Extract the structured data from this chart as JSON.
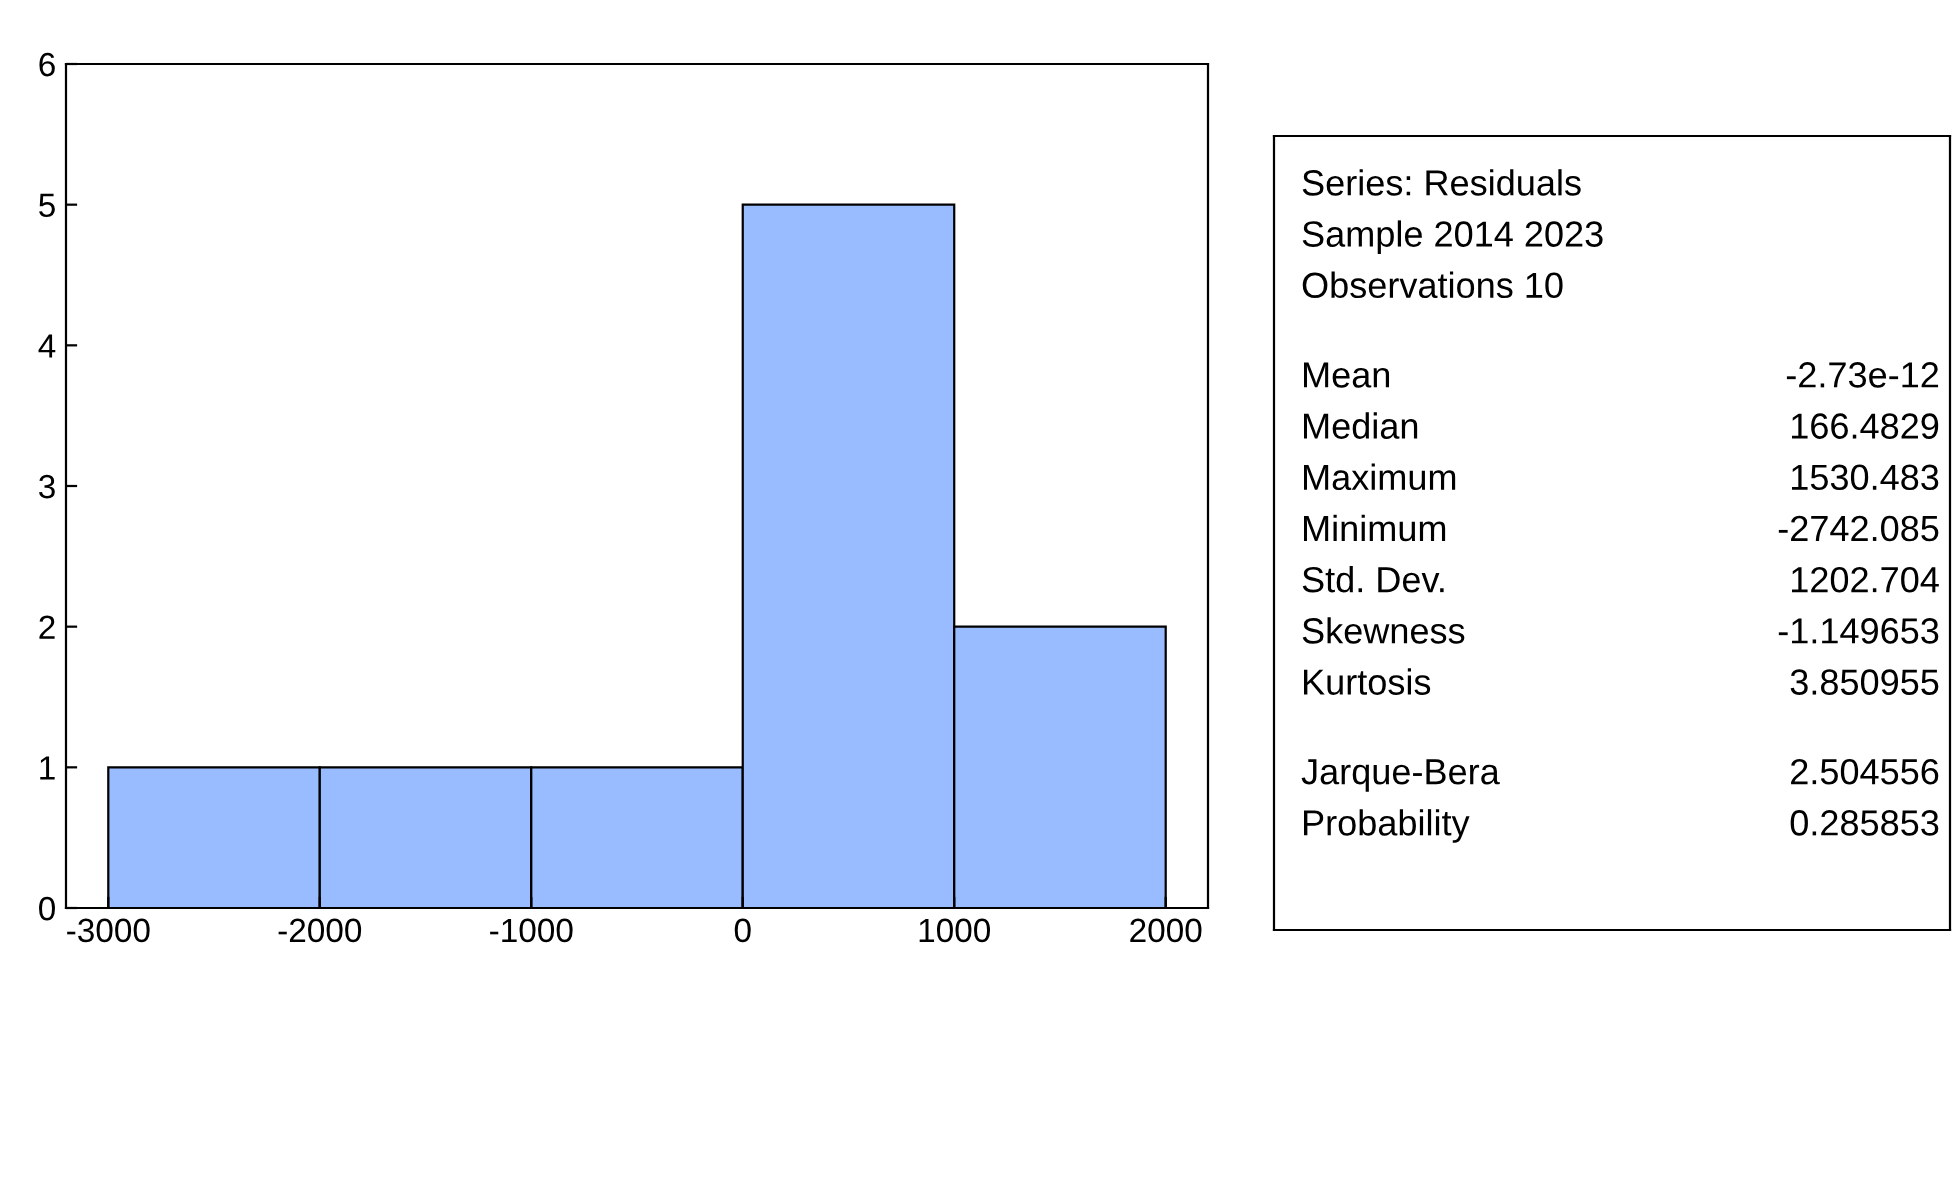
{
  "chart_data": [
    {
      "type": "histogram",
      "bins": [
        -3000,
        -2000,
        -1000,
        0,
        1000,
        2000
      ],
      "values": [
        1,
        1,
        1,
        5,
        2
      ],
      "color": "#99bbff",
      "xlim": [
        -3200,
        2200
      ],
      "xticks": [
        -3000,
        -2000,
        -1000,
        0,
        1000,
        2000
      ],
      "ylim": [
        0,
        6
      ],
      "yticks": [
        0,
        1,
        2,
        3,
        4,
        5,
        6
      ],
      "grid": false
    },
    {
      "type": "other",
      "annotations": [
        "Series: Residuals",
        "Sample 2014 2023",
        "Observations 10",
        "Mean",
        "-2.73e-12",
        "Median",
        "166.4829",
        "Maximum",
        "1530.483",
        "Minimum",
        "-2742.085",
        "Std. Dev.",
        "1202.704",
        "Skewness",
        "-1.149653",
        "Kurtosis",
        "3.850955",
        "Jarque-Bera",
        "2.504556",
        "Probability",
        "0.285853"
      ]
    }
  ]
}
